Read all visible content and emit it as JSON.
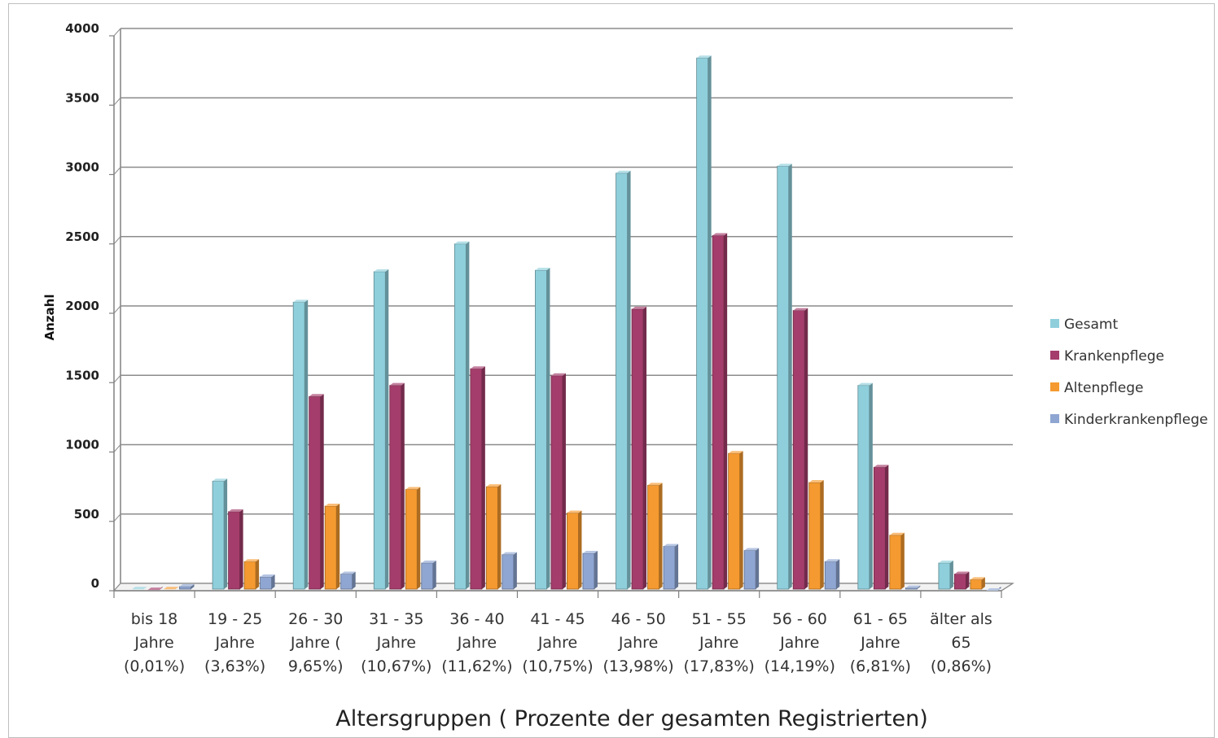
{
  "chart_data": {
    "type": "bar",
    "xlabel": "Altersgruppen ( Prozente der gesamten Registrierten)",
    "ylabel": "Anzahl",
    "ylim": [
      0,
      4000
    ],
    "yticks": [
      "0",
      "500",
      "1000",
      "1500",
      "2000",
      "2500",
      "3000",
      "3500",
      "4000"
    ],
    "grid": true,
    "legend_position": "right",
    "categories": [
      [
        "bis 18",
        "Jahre",
        "(0,01%)"
      ],
      [
        "19 - 25",
        "Jahre",
        "(3,63%)"
      ],
      [
        "26 - 30",
        "Jahre (",
        "9,65%)"
      ],
      [
        "31 - 35",
        "Jahre",
        "(10,67%)"
      ],
      [
        "36 - 40",
        "Jahre",
        "(11,62%)"
      ],
      [
        "41 - 45",
        "Jahre",
        "(10,75%)"
      ],
      [
        "46 - 50",
        "Jahre",
        "(13,98%)"
      ],
      [
        "51 - 55",
        "Jahre",
        "(17,83%)"
      ],
      [
        "56 - 60",
        "Jahre",
        "(14,19%)"
      ],
      [
        "61 - 65",
        "Jahre",
        "(6,81%)"
      ],
      [
        "älter als",
        "65",
        "(0,86%)"
      ]
    ],
    "series": [
      {
        "name": "Gesamt",
        "color": "#8fcfdc",
        "values": [
          10,
          790,
          2080,
          2300,
          2500,
          2310,
          3010,
          3840,
          3060,
          1480,
          200
        ]
      },
      {
        "name": "Krankenpflege",
        "color": "#a43d6b",
        "values": [
          5,
          570,
          1400,
          1480,
          1600,
          1550,
          2030,
          2560,
          2020,
          890,
          120
        ]
      },
      {
        "name": "Altenpflege",
        "color": "#f59a30",
        "values": [
          10,
          210,
          610,
          730,
          750,
          560,
          760,
          990,
          780,
          400,
          80
        ]
      },
      {
        "name": "Kinderkrankenpflege",
        "color": "#8fa6d2",
        "values": [
          30,
          100,
          120,
          200,
          260,
          270,
          320,
          290,
          210,
          20,
          0
        ]
      }
    ]
  }
}
